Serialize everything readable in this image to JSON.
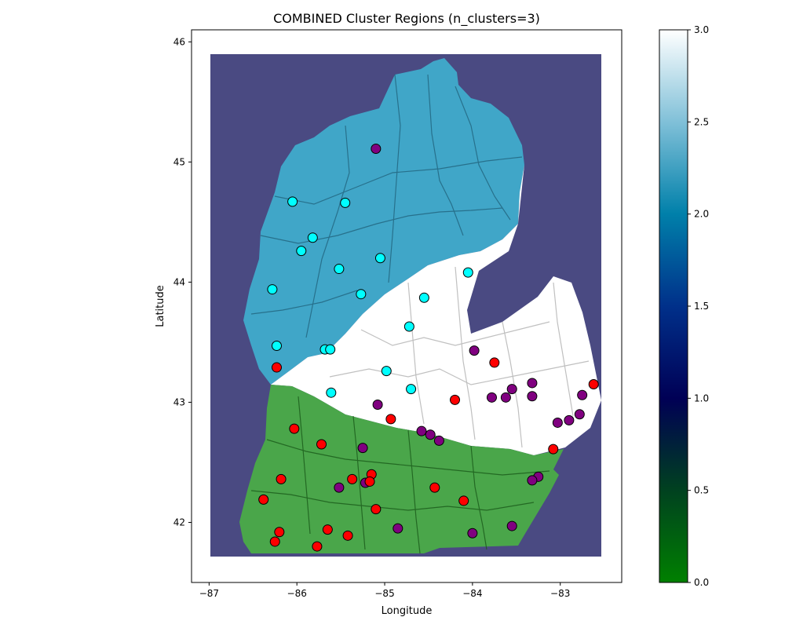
{
  "chart_data": {
    "type": "scatter",
    "title": "COMBINED Cluster Regions (n_clusters=3)",
    "xlabel": "Longitude",
    "ylabel": "Latitude",
    "xlim": [
      -87.2,
      -82.3
    ],
    "ylim": [
      41.5,
      46.1
    ],
    "xticks": [
      -87,
      -86,
      -85,
      -84,
      -83
    ],
    "yticks": [
      42,
      43,
      44,
      45,
      46
    ],
    "xtick_labels": [
      "−87",
      "−86",
      "−85",
      "−84",
      "−83"
    ],
    "ytick_labels": [
      "42",
      "43",
      "44",
      "45",
      "46"
    ],
    "grid": false,
    "regions": [
      {
        "cluster": 0,
        "color": "#1a8c1a",
        "extent": "southern Lower Peninsula"
      },
      {
        "cluster": 2,
        "color": "#40a6c8",
        "extent": "northern Lower Peninsula"
      },
      {
        "cluster": 3,
        "color": "#ffffff",
        "extent": "central / thumb region"
      }
    ],
    "background_color": "#4a4a82",
    "colorbar": {
      "colormap": "ocean",
      "range": [
        0.0,
        3.0
      ],
      "ticks": [
        0.0,
        0.5,
        1.0,
        1.5,
        2.0,
        2.5,
        3.0
      ],
      "tick_labels": [
        "0.0",
        "0.5",
        "1.0",
        "1.5",
        "2.0",
        "2.5",
        "3.0"
      ]
    },
    "series": [
      {
        "color": "#00ffff",
        "points": [
          [
            -86.05,
            44.67
          ],
          [
            -85.45,
            44.66
          ],
          [
            -85.82,
            44.37
          ],
          [
            -85.95,
            44.26
          ],
          [
            -85.05,
            44.2
          ],
          [
            -85.52,
            44.11
          ],
          [
            -84.05,
            44.08
          ],
          [
            -86.28,
            43.94
          ],
          [
            -85.27,
            43.9
          ],
          [
            -84.55,
            43.87
          ],
          [
            -84.72,
            43.63
          ],
          [
            -86.23,
            43.47
          ],
          [
            -85.68,
            43.44
          ],
          [
            -85.62,
            43.44
          ],
          [
            -84.98,
            43.26
          ],
          [
            -84.7,
            43.11
          ],
          [
            -85.61,
            43.08
          ]
        ]
      },
      {
        "color": "#800080",
        "points": [
          [
            -85.1,
            45.11
          ],
          [
            -83.98,
            43.43
          ],
          [
            -83.32,
            43.16
          ],
          [
            -83.55,
            43.11
          ],
          [
            -83.78,
            43.04
          ],
          [
            -83.62,
            43.04
          ],
          [
            -83.32,
            43.05
          ],
          [
            -82.75,
            43.06
          ],
          [
            -85.08,
            42.98
          ],
          [
            -82.78,
            42.9
          ],
          [
            -82.9,
            42.85
          ],
          [
            -83.03,
            42.83
          ],
          [
            -84.58,
            42.76
          ],
          [
            -84.48,
            42.73
          ],
          [
            -84.38,
            42.68
          ],
          [
            -85.25,
            42.62
          ],
          [
            -83.25,
            42.38
          ],
          [
            -83.32,
            42.35
          ],
          [
            -85.52,
            42.29
          ],
          [
            -85.22,
            42.33
          ],
          [
            -84.85,
            41.95
          ],
          [
            -83.55,
            41.97
          ],
          [
            -84.0,
            41.91
          ]
        ]
      },
      {
        "color": "#ff0000",
        "points": [
          [
            -83.75,
            43.33
          ],
          [
            -86.23,
            43.29
          ],
          [
            -82.62,
            43.15
          ],
          [
            -84.2,
            43.02
          ],
          [
            -84.93,
            42.86
          ],
          [
            -86.03,
            42.78
          ],
          [
            -85.72,
            42.65
          ],
          [
            -83.08,
            42.61
          ],
          [
            -85.15,
            42.4
          ],
          [
            -86.18,
            42.36
          ],
          [
            -85.37,
            42.36
          ],
          [
            -85.17,
            42.34
          ],
          [
            -84.43,
            42.29
          ],
          [
            -86.38,
            42.19
          ],
          [
            -84.1,
            42.18
          ],
          [
            -85.1,
            42.11
          ],
          [
            -85.65,
            41.94
          ],
          [
            -86.2,
            41.92
          ],
          [
            -85.42,
            41.89
          ],
          [
            -86.25,
            41.84
          ],
          [
            -85.77,
            41.8
          ]
        ]
      }
    ]
  }
}
